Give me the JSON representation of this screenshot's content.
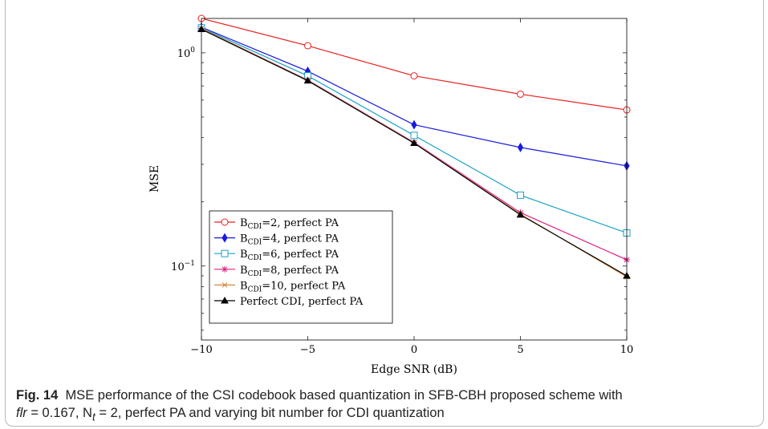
{
  "chart_data": {
    "type": "line",
    "xlabel": "Edge SNR (dB)",
    "ylabel": "MSE",
    "xlim": [
      -10,
      10
    ],
    "ylim": [
      0.045,
      1.45
    ],
    "yscale": "log",
    "x": [
      -10,
      -5,
      0,
      5,
      10
    ],
    "xticks": [
      -10,
      -5,
      0,
      5,
      10
    ],
    "xtick_labels": [
      "−10",
      "−5",
      "0",
      "5",
      "10"
    ],
    "yticks": [
      {
        "value": 1,
        "base": "10",
        "exp": "0"
      },
      {
        "value": 0.1,
        "base": "10",
        "exp": "−1"
      }
    ],
    "grid": false,
    "legend_position": "bottom-left",
    "series": [
      {
        "name_pre": "B",
        "name_sub": "CDI",
        "name_post": "=2, perfect PA",
        "color": "#e8201e",
        "marker": "circle",
        "values": [
          1.45,
          1.08,
          0.78,
          0.64,
          0.54
        ]
      },
      {
        "name_pre": "B",
        "name_sub": "CDI",
        "name_post": "=4, perfect PA",
        "color": "#1a1adf",
        "marker": "diamond",
        "values": [
          1.32,
          0.82,
          0.46,
          0.36,
          0.295
        ]
      },
      {
        "name_pre": "B",
        "name_sub": "CDI",
        "name_post": "=6, perfect PA",
        "color": "#1aa3c4",
        "marker": "square",
        "values": [
          1.31,
          0.78,
          0.41,
          0.215,
          0.143
        ]
      },
      {
        "name_pre": "B",
        "name_sub": "CDI",
        "name_post": "=8, perfect PA",
        "color": "#e0207e",
        "marker": "star",
        "values": [
          1.3,
          0.745,
          0.38,
          0.178,
          0.107
        ]
      },
      {
        "name_pre": "B",
        "name_sub": "CDI",
        "name_post": "=10, perfect PA",
        "color": "#d2873a",
        "marker": "cross",
        "values": [
          1.3,
          0.742,
          0.378,
          0.175,
          0.089
        ]
      },
      {
        "name_pre": "",
        "name_sub": "",
        "name_post": "Perfect CDI, perfect PA",
        "color": "#000000",
        "marker": "triangle",
        "values": [
          1.29,
          0.74,
          0.377,
          0.174,
          0.09
        ]
      }
    ]
  },
  "caption": {
    "fig_label": "Fig. 14",
    "line1": "MSE performance of the CSI codebook based quantization in SFB-CBH proposed scheme with",
    "flr_symbol": "flr",
    "flr_value": " = 0.167, N",
    "nt_sub": "t",
    "line2_rest": " = 2, perfect PA and varying bit number for CDI quantization"
  }
}
